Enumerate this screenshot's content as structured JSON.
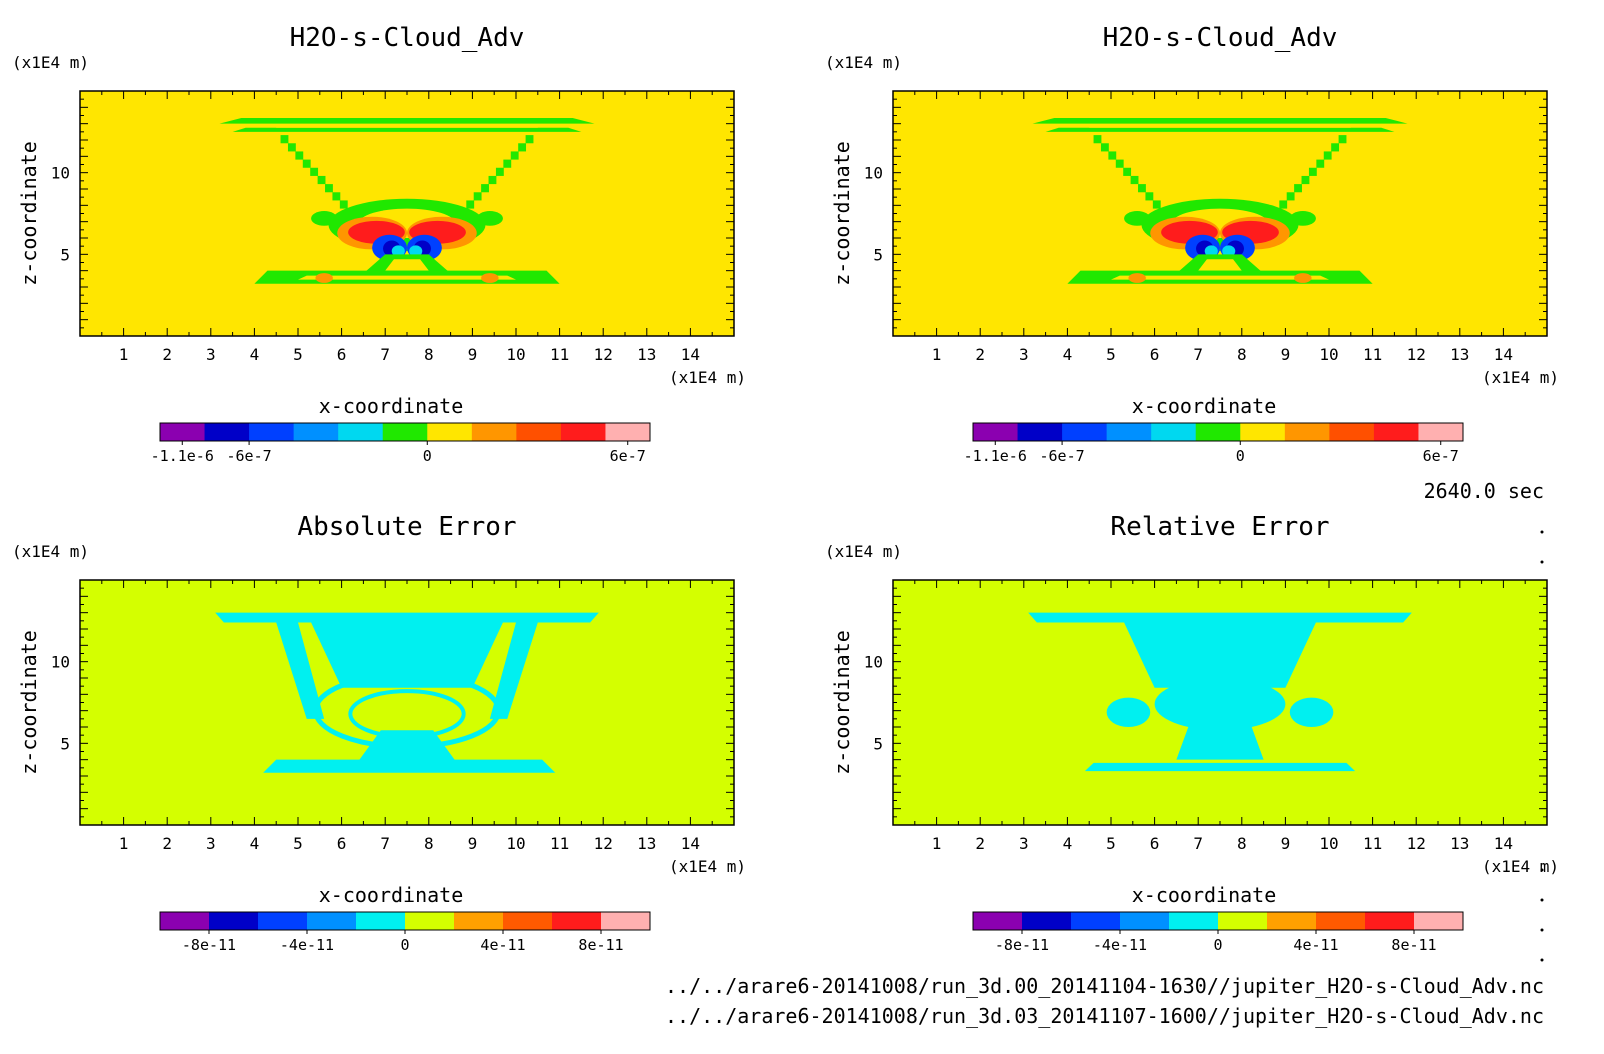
{
  "time_label": "2640.0 sec",
  "files": [
    "../../arare6-20141008/run_3d.00_20141104-1630//jupiter_H2O-s-Cloud_Adv.nc",
    "../../arare6-20141008/run_3d.03_20141107-1600//jupiter_H2O-s-Cloud_Adv.nc"
  ],
  "chart_data": [
    {
      "type": "heatmap",
      "title": "H2O-s-Cloud_Adv",
      "xlabel": "x-coordinate",
      "ylabel": "z-coordinate",
      "x_unit": "(x1E4 m)",
      "y_unit": "(x1E4 m)",
      "xlim": [
        0,
        15
      ],
      "ylim": [
        0,
        15
      ],
      "x_ticks": [
        "1",
        "2",
        "3",
        "4",
        "5",
        "6",
        "7",
        "8",
        "9",
        "10",
        "11",
        "12",
        "13",
        "14"
      ],
      "y_ticks": [
        "5",
        "10"
      ],
      "field": "cloud",
      "background": "#ffe600",
      "colorbar": {
        "colors": [
          "#8b00b0",
          "#0000c8",
          "#0040ff",
          "#0090ff",
          "#00d8f0",
          "#20e800",
          "#ffe600",
          "#ff9600",
          "#ff5000",
          "#ff1c1c",
          "#ffb0b0"
        ],
        "labels": [
          "-1.1e-6",
          "-6e-7",
          "0",
          "6e-7"
        ]
      }
    },
    {
      "type": "heatmap",
      "title": "H2O-s-Cloud_Adv",
      "xlabel": "x-coordinate",
      "ylabel": "z-coordinate",
      "x_unit": "(x1E4 m)",
      "y_unit": "(x1E4 m)",
      "xlim": [
        0,
        15
      ],
      "ylim": [
        0,
        15
      ],
      "x_ticks": [
        "1",
        "2",
        "3",
        "4",
        "5",
        "6",
        "7",
        "8",
        "9",
        "10",
        "11",
        "12",
        "13",
        "14"
      ],
      "y_ticks": [
        "5",
        "10"
      ],
      "field": "cloud",
      "background": "#ffe600",
      "colorbar": {
        "colors": [
          "#8b00b0",
          "#0000c8",
          "#0040ff",
          "#0090ff",
          "#00d8f0",
          "#20e800",
          "#ffe600",
          "#ff9600",
          "#ff5000",
          "#ff1c1c",
          "#ffb0b0"
        ],
        "labels": [
          "-1.1e-6",
          "-6e-7",
          "0",
          "6e-7"
        ]
      }
    },
    {
      "type": "heatmap",
      "title": "Absolute Error",
      "xlabel": "x-coordinate",
      "ylabel": "z-coordinate",
      "x_unit": "(x1E4 m)",
      "y_unit": "(x1E4 m)",
      "xlim": [
        0,
        15
      ],
      "ylim": [
        0,
        15
      ],
      "x_ticks": [
        "1",
        "2",
        "3",
        "4",
        "5",
        "6",
        "7",
        "8",
        "9",
        "10",
        "11",
        "12",
        "13",
        "14"
      ],
      "y_ticks": [
        "5",
        "10"
      ],
      "field": "abs_error",
      "background": "#d4ff00",
      "colorbar": {
        "colors": [
          "#8b00b0",
          "#0000c8",
          "#0040ff",
          "#0090ff",
          "#00f0f0",
          "#d4ff00",
          "#ffa000",
          "#ff5a00",
          "#ff1c1c",
          "#ffb0b0"
        ],
        "labels": [
          "-8e-11",
          "-4e-11",
          "0",
          "4e-11",
          "8e-11"
        ]
      }
    },
    {
      "type": "heatmap",
      "title": "Relative Error",
      "xlabel": "x-coordinate",
      "ylabel": "z-coordinate",
      "x_unit": "(x1E4 m)",
      "y_unit": "(x1E4 m)",
      "xlim": [
        0,
        15
      ],
      "ylim": [
        0,
        15
      ],
      "x_ticks": [
        "1",
        "2",
        "3",
        "4",
        "5",
        "6",
        "7",
        "8",
        "9",
        "10",
        "11",
        "12",
        "13",
        "14"
      ],
      "y_ticks": [
        "5",
        "10"
      ],
      "field": "rel_error",
      "background": "#d4ff00",
      "colorbar": {
        "colors": [
          "#8b00b0",
          "#0000c8",
          "#0040ff",
          "#0090ff",
          "#00f0f0",
          "#d4ff00",
          "#ffa000",
          "#ff5a00",
          "#ff1c1c",
          "#ffb0b0"
        ],
        "labels": [
          "-8e-11",
          "-4e-11",
          "0",
          "4e-11",
          "8e-11"
        ]
      }
    }
  ]
}
